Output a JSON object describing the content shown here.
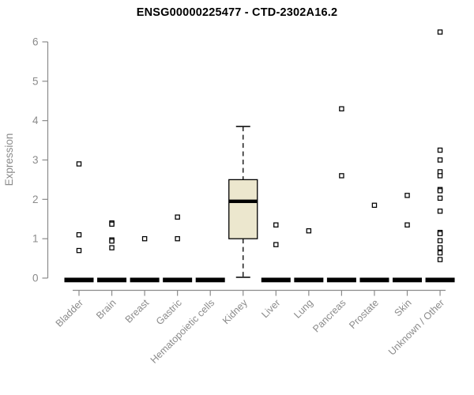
{
  "chart_data": {
    "type": "box",
    "title": "ENSG00000225477 - CTD-2302A16.2",
    "ylabel": "Expression",
    "ylim": [
      0,
      6
    ],
    "yticks": [
      0,
      1,
      2,
      3,
      4,
      5,
      6
    ],
    "grid": false,
    "legend": null,
    "marker": "open-square",
    "categories": [
      "Bladder",
      "Brain",
      "Breast",
      "Gastric",
      "Hematopoietic cells",
      "Kidney",
      "Liver",
      "Lung",
      "Pancreas",
      "Prostate",
      "Skin",
      "Unknown / Other"
    ],
    "boxes": [
      {
        "category": "Bladder",
        "collapsed": true,
        "median": 0,
        "q1": 0,
        "q3": 0,
        "whisker_low": 0,
        "whisker_high": 0,
        "points": [
          2.9,
          1.1,
          0.7
        ]
      },
      {
        "category": "Brain",
        "collapsed": true,
        "median": 0,
        "q1": 0,
        "q3": 0,
        "whisker_low": 0,
        "whisker_high": 0,
        "points": [
          1.4,
          1.37,
          0.97,
          0.94,
          0.77
        ]
      },
      {
        "category": "Breast",
        "collapsed": true,
        "median": 0,
        "q1": 0,
        "q3": 0,
        "whisker_low": 0,
        "whisker_high": 0,
        "points": [
          1.0
        ]
      },
      {
        "category": "Gastric",
        "collapsed": true,
        "median": 0,
        "q1": 0,
        "q3": 0,
        "whisker_low": 0,
        "whisker_high": 0,
        "points": [
          1.55,
          1.0
        ]
      },
      {
        "category": "Hematopoietic cells",
        "collapsed": true,
        "median": 0,
        "q1": 0,
        "q3": 0,
        "whisker_low": 0,
        "whisker_high": 0,
        "points": []
      },
      {
        "category": "Kidney",
        "collapsed": false,
        "median": 1.95,
        "q1": 1.0,
        "q3": 2.5,
        "whisker_low": 0.02,
        "whisker_high": 3.85,
        "points": []
      },
      {
        "category": "Liver",
        "collapsed": true,
        "median": 0,
        "q1": 0,
        "q3": 0,
        "whisker_low": 0,
        "whisker_high": 0,
        "points": [
          1.35,
          0.85
        ]
      },
      {
        "category": "Lung",
        "collapsed": true,
        "median": 0,
        "q1": 0,
        "q3": 0,
        "whisker_low": 0,
        "whisker_high": 0,
        "points": [
          1.2
        ]
      },
      {
        "category": "Pancreas",
        "collapsed": true,
        "median": 0,
        "q1": 0,
        "q3": 0,
        "whisker_low": 0,
        "whisker_high": 0,
        "points": [
          4.3,
          2.6
        ]
      },
      {
        "category": "Prostate",
        "collapsed": true,
        "median": 0,
        "q1": 0,
        "q3": 0,
        "whisker_low": 0,
        "whisker_high": 0,
        "points": [
          1.85
        ]
      },
      {
        "category": "Skin",
        "collapsed": true,
        "median": 0,
        "q1": 0,
        "q3": 0,
        "whisker_low": 0,
        "whisker_high": 0,
        "points": [
          2.1,
          1.35
        ]
      },
      {
        "category": "Unknown / Other",
        "collapsed": true,
        "median": 0,
        "q1": 0,
        "q3": 0,
        "whisker_low": 0,
        "whisker_high": 0,
        "points": [
          6.25,
          3.25,
          3.0,
          2.7,
          2.6,
          2.25,
          2.22,
          2.03,
          1.7,
          1.16,
          1.13,
          0.95,
          0.77,
          0.64,
          0.47
        ]
      }
    ],
    "colors": {
      "background": "#FFFFFF",
      "title": "#000000",
      "axis": "#8B8B8B",
      "text": "#8B8B8B",
      "box_fill": "#ECE7CE",
      "box_stroke": "#000000",
      "median": "#000000",
      "marker_stroke": "#000000",
      "marker_fill": "#FFFFFF"
    }
  }
}
